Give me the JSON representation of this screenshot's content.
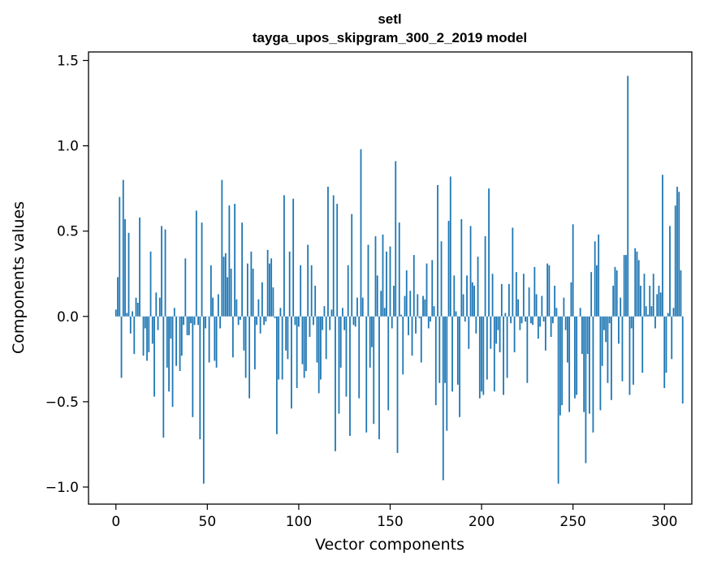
{
  "chart_data": {
    "type": "bar",
    "title_line1": "setl",
    "title_line2": "tayga_upos_skipgram_300_2_2019 model",
    "xlabel": "Vector components",
    "ylabel": "Components values",
    "xlim": [
      -15,
      315
    ],
    "ylim": [
      -1.1,
      1.55
    ],
    "xticks": [
      0,
      50,
      100,
      150,
      200,
      250,
      300
    ],
    "yticks": [
      -1.0,
      -0.5,
      0.0,
      0.5,
      1.0,
      1.5
    ],
    "ytick_labels": [
      "−1.0",
      "−0.5",
      "0.0",
      "0.5",
      "1.0",
      "1.5"
    ],
    "bar_color": "#1f77b4",
    "grid": false,
    "values": [
      0.04,
      0.23,
      0.7,
      -0.36,
      0.8,
      0.57,
      0.02,
      0.49,
      -0.1,
      0.03,
      -0.22,
      0.11,
      0.08,
      0.58,
      0.0,
      -0.23,
      -0.07,
      -0.26,
      -0.21,
      0.38,
      -0.16,
      -0.47,
      0.14,
      -0.08,
      0.11,
      0.53,
      -0.71,
      0.51,
      -0.3,
      -0.44,
      -0.13,
      -0.53,
      0.05,
      -0.29,
      0.0,
      -0.32,
      -0.23,
      -0.05,
      0.34,
      -0.11,
      -0.11,
      -0.04,
      -0.59,
      -0.05,
      0.62,
      -0.05,
      -0.72,
      0.55,
      -0.98,
      -0.07,
      0.0,
      -0.27,
      0.3,
      0.11,
      -0.26,
      -0.3,
      0.13,
      -0.07,
      0.8,
      0.35,
      0.37,
      0.23,
      0.65,
      0.28,
      -0.24,
      0.66,
      0.1,
      -0.05,
      -0.02,
      0.55,
      -0.2,
      -0.36,
      0.31,
      -0.48,
      0.38,
      0.28,
      -0.31,
      -0.05,
      0.1,
      -0.1,
      0.2,
      -0.05,
      -0.03,
      0.39,
      0.31,
      0.34,
      0.17,
      -0.01,
      -0.69,
      -0.37,
      0.05,
      -0.37,
      0.71,
      -0.2,
      -0.25,
      0.38,
      -0.54,
      0.69,
      -0.05,
      -0.42,
      -0.06,
      0.3,
      -0.28,
      -0.36,
      -0.32,
      0.42,
      -0.12,
      0.3,
      -0.05,
      0.18,
      -0.27,
      -0.45,
      -0.37,
      -0.08,
      0.06,
      -0.25,
      0.76,
      -0.08,
      0.04,
      0.71,
      -0.79,
      0.66,
      -0.57,
      -0.3,
      0.05,
      -0.08,
      -0.47,
      0.3,
      -0.7,
      0.6,
      -0.05,
      -0.06,
      0.11,
      -0.48,
      0.98,
      0.11,
      0.0,
      -0.68,
      0.42,
      -0.3,
      -0.18,
      -0.63,
      0.47,
      0.24,
      -0.72,
      0.15,
      0.48,
      0.05,
      0.38,
      -0.55,
      0.41,
      -0.07,
      0.18,
      0.91,
      -0.8,
      0.55,
      0.01,
      -0.34,
      0.12,
      0.27,
      -0.11,
      0.15,
      -0.23,
      0.36,
      -0.1,
      0.13,
      -0.01,
      -0.27,
      0.12,
      0.1,
      0.31,
      -0.07,
      -0.03,
      0.33,
      0.06,
      -0.52,
      0.77,
      -0.39,
      0.44,
      -0.96,
      -0.39,
      -0.67,
      0.56,
      0.82,
      -0.44,
      0.24,
      0.03,
      -0.4,
      -0.59,
      0.57,
      0.13,
      -0.03,
      0.24,
      -0.19,
      0.53,
      0.2,
      0.18,
      -0.1,
      0.35,
      -0.48,
      -0.44,
      -0.46,
      0.47,
      -0.37,
      0.75,
      -0.19,
      0.25,
      -0.44,
      -0.16,
      -0.08,
      -0.21,
      0.19,
      -0.46,
      0.02,
      -0.36,
      0.19,
      -0.04,
      0.52,
      -0.21,
      0.26,
      0.1,
      -0.08,
      -0.04,
      0.25,
      -0.03,
      -0.39,
      0.17,
      -0.04,
      -0.05,
      0.29,
      0.13,
      -0.13,
      -0.06,
      0.12,
      -0.03,
      -0.2,
      0.31,
      0.3,
      -0.12,
      -0.04,
      0.18,
      0.05,
      -0.98,
      -0.58,
      -0.52,
      0.11,
      -0.08,
      -0.27,
      -0.56,
      0.2,
      0.54,
      -0.48,
      -0.46,
      0.0,
      0.05,
      -0.22,
      -0.56,
      -0.86,
      -0.22,
      -0.57,
      0.26,
      -0.68,
      0.44,
      0.3,
      0.48,
      -0.55,
      -0.29,
      -0.08,
      -0.15,
      -0.39,
      -0.04,
      -0.49,
      0.18,
      0.29,
      0.27,
      -0.16,
      0.11,
      -0.38,
      0.36,
      0.36,
      1.41,
      -0.46,
      -0.07,
      -0.4,
      0.4,
      0.38,
      0.33,
      0.18,
      -0.33,
      0.25,
      0.06,
      0.01,
      0.18,
      0.06,
      0.25,
      -0.07,
      0.13,
      0.18,
      0.14,
      0.83,
      -0.42,
      -0.33,
      0.02,
      0.53,
      -0.25,
      0.05,
      0.65,
      0.76,
      0.73,
      0.27,
      -0.51
    ]
  }
}
